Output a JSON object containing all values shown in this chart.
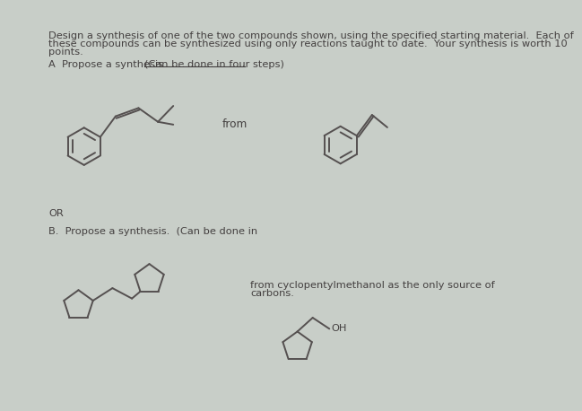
{
  "background_color": "#c8cec8",
  "title_text1": "Design a synthesis of one of the two compounds shown, using the specified starting material.  Each of",
  "title_text2": "these compounds can be synthesized using only reactions taught to date.  Your synthesis is worth 10",
  "title_text3": "points.",
  "section_a_pre": "A  Propose a synthesis.  ",
  "section_a_under": "(Can be done in four steps)",
  "from_text_a": "from",
  "or_text": "OR",
  "section_b_label": "B.  Propose a synthesis.  (Can be done in",
  "from_text_b1": "from cyclopentylmethanol as the only source of",
  "from_text_b2": "carbons.",
  "oh_text": "OH",
  "line_color": "#555050",
  "text_color": "#444040",
  "lw": 1.4
}
